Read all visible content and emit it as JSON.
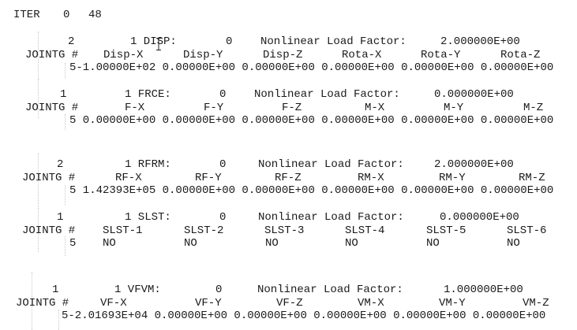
{
  "iter": {
    "label": "ITER",
    "a": "0",
    "b": "48"
  },
  "blocks": [
    {
      "count": "2",
      "type": "1 DISP:",
      "zero": "0",
      "factor_label": "Nonlinear Load Factor:",
      "factor": "2.000000E+00",
      "node_label": "JOINTG #",
      "columns": [
        "Disp-X",
        "Disp-Y",
        "Disp-Z",
        "Rota-X",
        "Rota-Y",
        "Rota-Z"
      ],
      "row": "5-1.00000E+02 0.00000E+00 0.00000E+00 0.00000E+00 0.00000E+00 0.00000E+00"
    },
    {
      "count": "1",
      "type": "1 FRCE:",
      "zero": "0",
      "factor_label": "Nonlinear Load Factor:",
      "factor": "0.000000E+00",
      "node_label": "JOINTG #",
      "columns": [
        "F-X",
        "F-Y",
        "F-Z",
        "M-X",
        "M-Y",
        "M-Z"
      ],
      "row": "5 0.00000E+00 0.00000E+00 0.00000E+00 0.00000E+00 0.00000E+00 0.00000E+00"
    },
    {
      "count": "2",
      "type": "1 RFRM:",
      "zero": "0",
      "factor_label": "Nonlinear Load Factor:",
      "factor": "2.000000E+00",
      "node_label": "JOINTG #",
      "columns": [
        "RF-X",
        "RF-Y",
        "RF-Z",
        "RM-X",
        "RM-Y",
        "RM-Z"
      ],
      "row": "5 1.42393E+05 0.00000E+00 0.00000E+00 0.00000E+00 0.00000E+00 0.00000E+00"
    },
    {
      "count": "1",
      "type": "1 SLST:",
      "zero": "0",
      "factor_label": "Nonlinear Load Factor:",
      "factor": "0.000000E+00",
      "node_label": "JOINTG #",
      "columns": [
        "SLST-1",
        "SLST-2",
        "SLST-3",
        "SLST-4",
        "SLST-5",
        "SLST-6"
      ],
      "row_node": "5",
      "row_values": [
        "NO",
        "NO",
        "NO",
        "NO",
        "NO",
        "NO"
      ]
    },
    {
      "count": "1",
      "type": "1 VFVM:",
      "zero": "0",
      "factor_label": "Nonlinear Load Factor:",
      "factor": "1.000000E+00",
      "node_label": "JOINTG #",
      "columns": [
        "VF-X",
        "VF-Y",
        "VF-Z",
        "VM-X",
        "VM-Y",
        "VM-Z"
      ],
      "row": "5-2.01693E+04 0.00000E+00 0.00000E+00 0.00000E+00 0.00000E+00 0.00000E+00"
    }
  ]
}
